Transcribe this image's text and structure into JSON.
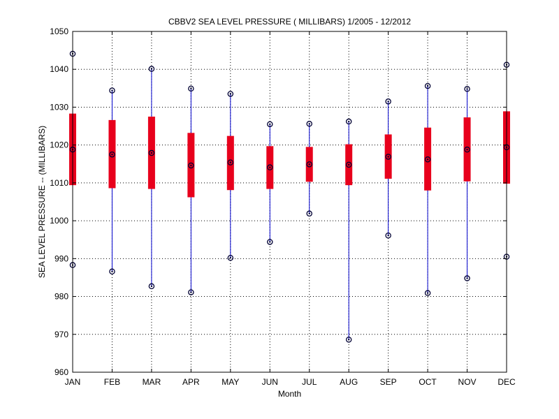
{
  "chart_data": {
    "type": "box",
    "title": "CBBV2  SEA LEVEL PRESSURE ( MILLIBARS) 1/2005 - 12/2012",
    "xlabel": "Month",
    "ylabel": "SEA LEVEL PRESSURE -- (MILLIBARS)",
    "categories": [
      "JAN",
      "FEB",
      "MAR",
      "APR",
      "MAY",
      "JUN",
      "JUL",
      "AUG",
      "SEP",
      "OCT",
      "NOV",
      "DEC"
    ],
    "ylim": [
      960,
      1050
    ],
    "yticks": [
      960,
      970,
      980,
      990,
      1000,
      1010,
      1020,
      1030,
      1040,
      1050
    ],
    "grid": true,
    "colors": {
      "whisker": "#0000cc",
      "box": "#e8001c",
      "marker": "#000033"
    },
    "series": [
      {
        "category": "JAN",
        "min": 988.3,
        "q1": 1009.4,
        "median": 1018.8,
        "q3": 1028.3,
        "max": 1044.1
      },
      {
        "category": "FEB",
        "min": 986.6,
        "q1": 1008.6,
        "median": 1017.5,
        "q3": 1026.6,
        "max": 1034.4
      },
      {
        "category": "MAR",
        "min": 982.7,
        "q1": 1008.4,
        "median": 1017.9,
        "q3": 1027.5,
        "max": 1040.1
      },
      {
        "category": "APR",
        "min": 981.1,
        "q1": 1006.2,
        "median": 1014.6,
        "q3": 1023.2,
        "max": 1034.9
      },
      {
        "category": "MAY",
        "min": 990.2,
        "q1": 1008.1,
        "median": 1015.4,
        "q3": 1022.4,
        "max": 1033.5
      },
      {
        "category": "JUN",
        "min": 994.4,
        "q1": 1008.4,
        "median": 1014.1,
        "q3": 1019.7,
        "max": 1025.5
      },
      {
        "category": "JUL",
        "min": 1001.9,
        "q1": 1010.3,
        "median": 1014.9,
        "q3": 1019.5,
        "max": 1025.6
      },
      {
        "category": "AUG",
        "min": 968.6,
        "q1": 1009.4,
        "median": 1014.8,
        "q3": 1020.2,
        "max": 1026.2
      },
      {
        "category": "SEP",
        "min": 996.1,
        "q1": 1011.1,
        "median": 1016.9,
        "q3": 1022.8,
        "max": 1031.5
      },
      {
        "category": "OCT",
        "min": 980.9,
        "q1": 1008.0,
        "median": 1016.2,
        "q3": 1024.6,
        "max": 1035.6
      },
      {
        "category": "NOV",
        "min": 984.8,
        "q1": 1010.4,
        "median": 1018.8,
        "q3": 1027.3,
        "max": 1034.8
      },
      {
        "category": "DEC",
        "min": 990.5,
        "q1": 1009.8,
        "median": 1019.4,
        "q3": 1028.9,
        "max": 1041.2
      }
    ]
  }
}
